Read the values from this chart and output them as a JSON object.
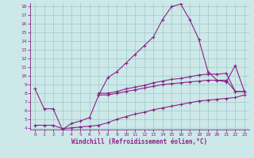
{
  "x": [
    0,
    1,
    2,
    3,
    4,
    5,
    6,
    7,
    8,
    9,
    10,
    11,
    12,
    13,
    14,
    15,
    16,
    17,
    18,
    19,
    20,
    21,
    22,
    23
  ],
  "line_main": [
    8.5,
    6.2,
    6.2,
    3.8,
    4.5,
    4.8,
    5.2,
    7.8,
    9.8,
    10.5,
    11.5,
    12.5,
    13.5,
    14.5,
    16.5,
    18.0,
    18.3,
    16.5,
    14.2,
    10.5,
    9.5,
    9.3,
    11.2,
    8.2
  ],
  "line_upper": [
    null,
    null,
    null,
    null,
    null,
    null,
    null,
    8.0,
    8.0,
    8.2,
    8.5,
    8.7,
    8.9,
    9.2,
    9.4,
    9.6,
    9.7,
    9.9,
    10.1,
    10.2,
    10.2,
    10.3,
    8.2,
    8.2
  ],
  "line_mid": [
    null,
    null,
    null,
    null,
    null,
    null,
    null,
    7.8,
    7.8,
    8.0,
    8.2,
    8.4,
    8.6,
    8.8,
    9.0,
    9.1,
    9.2,
    9.3,
    9.4,
    9.5,
    9.5,
    9.5,
    8.2,
    8.2
  ],
  "line_low": [
    4.3,
    4.3,
    4.3,
    3.9,
    4.0,
    4.1,
    4.2,
    4.3,
    4.6,
    5.0,
    5.3,
    5.6,
    5.8,
    6.1,
    6.3,
    6.5,
    6.7,
    6.9,
    7.1,
    7.2,
    7.3,
    7.4,
    7.5,
    7.8
  ],
  "bg_color": "#cde8e8",
  "grid_color": "#a0c8c8",
  "line_color": "#882288",
  "xlabel": "Windchill (Refroidissement éolien,°C)",
  "ylim": [
    4,
    18
  ],
  "xlim": [
    0,
    23
  ],
  "yticks": [
    4,
    5,
    6,
    7,
    8,
    9,
    10,
    11,
    12,
    13,
    14,
    15,
    16,
    17,
    18
  ],
  "xticks": [
    0,
    1,
    2,
    3,
    4,
    5,
    6,
    7,
    8,
    9,
    10,
    11,
    12,
    13,
    14,
    15,
    16,
    17,
    18,
    19,
    20,
    21,
    22,
    23
  ]
}
